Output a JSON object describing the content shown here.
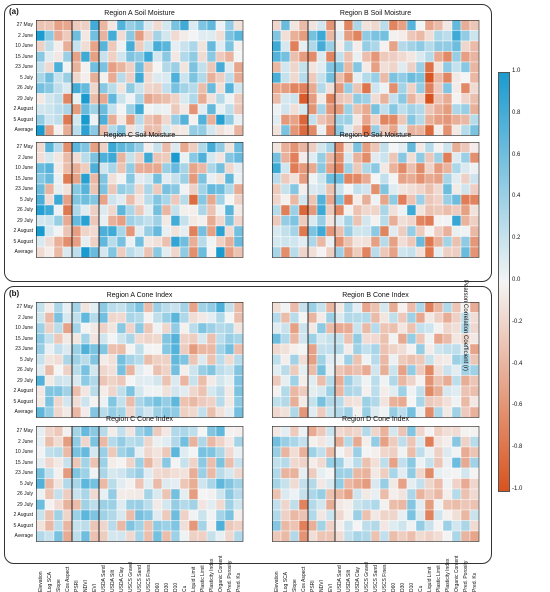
{
  "groups": [
    {
      "label": "(a)"
    },
    {
      "label": "(b)"
    }
  ],
  "chart_data": [
    {
      "type": "heatmap",
      "title": "Region A Soil Moisture",
      "rows": [
        "27 May",
        "2 June",
        "10 June",
        "15 June",
        "23 June",
        "5 July",
        "26 July",
        "29 July",
        "2 August",
        "5 August",
        "Average"
      ],
      "columns": [
        "Elevation",
        "Log SCA",
        "Slope",
        "Cos Aspect",
        "PSRI",
        "NDVI",
        "EVI",
        "USDA Sand",
        "USDA Silt",
        "USDA Clay",
        "USCS Gravel",
        "USCS Sand",
        "USCS Fines",
        "D60",
        "D30",
        "D10",
        "Cu",
        "Liquid Limit",
        "Plastic Limit",
        "Plasticity Index",
        "Organic Content",
        "Pred. Porosity",
        "Pred. Ks"
      ]
    },
    {
      "type": "heatmap",
      "title": "Region B Soil Moisture"
    },
    {
      "type": "heatmap",
      "title": "Region C Soil Moisture"
    },
    {
      "type": "heatmap",
      "title": "Region D Soil Moisture"
    },
    {
      "type": "heatmap",
      "title": "Region A Cone Index"
    },
    {
      "type": "heatmap",
      "title": "Region B Cone Index"
    },
    {
      "type": "heatmap",
      "title": "Region C Cone Index"
    },
    {
      "type": "heatmap",
      "title": "Region D Cone Index"
    },
    {
      "type": "colorbar",
      "title": "Pearson Correlation Coefficient (r)",
      "range": [
        -1.0,
        1.0
      ],
      "ticks": [
        "1.0",
        "0.8",
        "0.6",
        "0.4",
        "0.2",
        "0.0",
        "-0.2",
        "-0.4",
        "-0.6",
        "-0.8",
        "-1.0"
      ],
      "colors": {
        "positive": "#1a9bd0",
        "neutral": "#f4f4f4",
        "negative": "#d9531e"
      }
    }
  ]
}
